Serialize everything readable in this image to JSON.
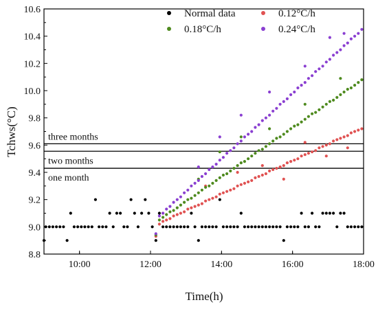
{
  "chart_data": {
    "type": "scatter",
    "xlabel": "Time(h)",
    "ylabel": "Tchws(°C)",
    "xlim": [
      9,
      18
    ],
    "ylim": [
      8.8,
      10.6
    ],
    "x_ticks": [
      {
        "value": 10,
        "label": "10:00"
      },
      {
        "value": 12,
        "label": "12:00"
      },
      {
        "value": 14,
        "label": "14:00"
      },
      {
        "value": 16,
        "label": "16:00"
      },
      {
        "value": 18,
        "label": "18:00"
      }
    ],
    "y_ticks": [
      {
        "value": 8.8,
        "label": "8.8"
      },
      {
        "value": 9.0,
        "label": "9.0"
      },
      {
        "value": 9.2,
        "label": "9.2"
      },
      {
        "value": 9.4,
        "label": "9.4"
      },
      {
        "value": 9.6,
        "label": "9.6"
      },
      {
        "value": 9.8,
        "label": "9.8"
      },
      {
        "value": 10.0,
        "label": "10.0"
      },
      {
        "value": 10.2,
        "label": "10.2"
      },
      {
        "value": 10.4,
        "label": "10.4"
      },
      {
        "value": 10.6,
        "label": "10.6"
      }
    ],
    "legend_position": "top-right",
    "grid": false,
    "reference_lines": [
      {
        "y": 9.61,
        "label": "three months"
      },
      {
        "y": 9.555,
        "label": "two months"
      },
      {
        "y": 9.43,
        "label": "one month"
      }
    ],
    "series": [
      {
        "name": "Normal data",
        "color": "#000000",
        "points": [
          [
            9.0,
            8.9
          ],
          [
            9.05,
            9.0
          ],
          [
            9.15,
            9.0
          ],
          [
            9.25,
            9.0
          ],
          [
            9.35,
            9.0
          ],
          [
            9.45,
            9.0
          ],
          [
            9.55,
            9.0
          ],
          [
            9.65,
            8.9
          ],
          [
            9.75,
            9.1
          ],
          [
            9.85,
            9.0
          ],
          [
            9.95,
            9.0
          ],
          [
            10.05,
            9.0
          ],
          [
            10.15,
            9.0
          ],
          [
            10.25,
            9.0
          ],
          [
            10.35,
            9.0
          ],
          [
            10.45,
            9.2
          ],
          [
            10.55,
            9.0
          ],
          [
            10.65,
            9.0
          ],
          [
            10.75,
            9.0
          ],
          [
            10.85,
            9.1
          ],
          [
            10.95,
            9.0
          ],
          [
            11.05,
            9.1
          ],
          [
            11.15,
            9.1
          ],
          [
            11.25,
            9.0
          ],
          [
            11.35,
            9.0
          ],
          [
            11.45,
            9.2
          ],
          [
            11.55,
            9.1
          ],
          [
            11.65,
            9.0
          ],
          [
            11.75,
            9.1
          ],
          [
            11.85,
            9.2
          ],
          [
            11.95,
            9.1
          ],
          [
            12.05,
            9.0
          ],
          [
            12.15,
            8.9
          ],
          [
            12.25,
            9.1
          ],
          [
            12.35,
            9.0
          ],
          [
            12.45,
            9.0
          ],
          [
            12.55,
            9.0
          ],
          [
            12.65,
            9.0
          ],
          [
            12.75,
            9.0
          ],
          [
            12.85,
            9.0
          ],
          [
            12.95,
            9.0
          ],
          [
            13.05,
            9.0
          ],
          [
            13.15,
            9.1
          ],
          [
            13.25,
            9.0
          ],
          [
            13.35,
            8.9
          ],
          [
            13.45,
            9.0
          ],
          [
            13.55,
            9.0
          ],
          [
            13.65,
            9.0
          ],
          [
            13.75,
            9.0
          ],
          [
            13.85,
            9.0
          ],
          [
            13.95,
            9.2
          ],
          [
            14.05,
            9.0
          ],
          [
            14.15,
            9.0
          ],
          [
            14.25,
            9.0
          ],
          [
            14.35,
            9.0
          ],
          [
            14.45,
            9.0
          ],
          [
            14.55,
            9.1
          ],
          [
            14.65,
            9.0
          ],
          [
            14.75,
            9.0
          ],
          [
            14.85,
            9.0
          ],
          [
            14.95,
            9.0
          ],
          [
            15.05,
            9.0
          ],
          [
            15.15,
            9.0
          ],
          [
            15.25,
            9.0
          ],
          [
            15.35,
            9.0
          ],
          [
            15.45,
            9.0
          ],
          [
            15.55,
            9.0
          ],
          [
            15.65,
            9.0
          ],
          [
            15.75,
            8.9
          ],
          [
            15.85,
            9.0
          ],
          [
            15.95,
            9.0
          ],
          [
            16.05,
            9.0
          ],
          [
            16.15,
            9.0
          ],
          [
            16.25,
            9.1
          ],
          [
            16.35,
            9.0
          ],
          [
            16.45,
            9.0
          ],
          [
            16.55,
            9.1
          ],
          [
            16.65,
            9.0
          ],
          [
            16.75,
            9.0
          ],
          [
            16.85,
            9.1
          ],
          [
            16.95,
            9.1
          ],
          [
            17.05,
            9.1
          ],
          [
            17.15,
            9.1
          ],
          [
            17.25,
            9.0
          ],
          [
            17.35,
            9.1
          ],
          [
            17.45,
            9.1
          ],
          [
            17.55,
            9.0
          ],
          [
            17.65,
            9.0
          ],
          [
            17.75,
            9.0
          ],
          [
            17.85,
            9.0
          ],
          [
            17.95,
            9.0
          ]
        ]
      },
      {
        "name": "0.12°C/h",
        "color": "#e05252",
        "points": [
          [
            12.15,
            8.93
          ],
          [
            12.25,
            9.02
          ],
          [
            12.35,
            9.04
          ],
          [
            12.45,
            9.05
          ],
          [
            12.55,
            9.06
          ],
          [
            12.65,
            9.08
          ],
          [
            12.75,
            9.09
          ],
          [
            12.85,
            9.1
          ],
          [
            12.95,
            9.11
          ],
          [
            13.05,
            9.13
          ],
          [
            13.15,
            9.14
          ],
          [
            13.25,
            9.15
          ],
          [
            13.35,
            9.16
          ],
          [
            13.45,
            9.17
          ],
          [
            13.55,
            9.19
          ],
          [
            13.65,
            9.2
          ],
          [
            13.75,
            9.21
          ],
          [
            13.85,
            9.22
          ],
          [
            13.95,
            9.24
          ],
          [
            14.05,
            9.25
          ],
          [
            14.15,
            9.26
          ],
          [
            14.25,
            9.27
          ],
          [
            14.35,
            9.28
          ],
          [
            14.45,
            9.3
          ],
          [
            14.55,
            9.31
          ],
          [
            14.65,
            9.32
          ],
          [
            14.75,
            9.33
          ],
          [
            14.85,
            9.34
          ],
          [
            14.95,
            9.36
          ],
          [
            15.05,
            9.37
          ],
          [
            15.15,
            9.38
          ],
          [
            15.25,
            9.39
          ],
          [
            15.35,
            9.41
          ],
          [
            15.45,
            9.42
          ],
          [
            15.55,
            9.43
          ],
          [
            15.65,
            9.44
          ],
          [
            15.75,
            9.45
          ],
          [
            15.85,
            9.47
          ],
          [
            15.95,
            9.48
          ],
          [
            16.05,
            9.49
          ],
          [
            16.15,
            9.5
          ],
          [
            16.25,
            9.52
          ],
          [
            16.35,
            9.53
          ],
          [
            16.45,
            9.54
          ],
          [
            16.55,
            9.55
          ],
          [
            16.65,
            9.56
          ],
          [
            16.75,
            9.58
          ],
          [
            16.85,
            9.59
          ],
          [
            16.95,
            9.6
          ],
          [
            17.05,
            9.61
          ],
          [
            17.15,
            9.63
          ],
          [
            17.25,
            9.64
          ],
          [
            17.35,
            9.65
          ],
          [
            17.45,
            9.66
          ],
          [
            17.55,
            9.67
          ],
          [
            17.65,
            9.69
          ],
          [
            17.75,
            9.7
          ],
          [
            17.85,
            9.71
          ],
          [
            17.95,
            9.72
          ],
          [
            12.35,
            9.1
          ],
          [
            13.55,
            9.3
          ],
          [
            14.45,
            9.4
          ],
          [
            15.15,
            9.45
          ],
          [
            15.75,
            9.35
          ],
          [
            16.35,
            9.62
          ],
          [
            16.95,
            9.52
          ],
          [
            17.55,
            9.58
          ]
        ]
      },
      {
        "name": "0.18°C/h",
        "color": "#4e8a1e",
        "points": [
          [
            12.15,
            8.94
          ],
          [
            12.25,
            9.05
          ],
          [
            12.35,
            9.07
          ],
          [
            12.45,
            9.09
          ],
          [
            12.55,
            9.11
          ],
          [
            12.65,
            9.12
          ],
          [
            12.75,
            9.14
          ],
          [
            12.85,
            9.16
          ],
          [
            12.95,
            9.18
          ],
          [
            13.05,
            9.2
          ],
          [
            13.15,
            9.21
          ],
          [
            13.25,
            9.23
          ],
          [
            13.35,
            9.25
          ],
          [
            13.45,
            9.27
          ],
          [
            13.55,
            9.29
          ],
          [
            13.65,
            9.3
          ],
          [
            13.75,
            9.32
          ],
          [
            13.85,
            9.34
          ],
          [
            13.95,
            9.36
          ],
          [
            14.05,
            9.38
          ],
          [
            14.15,
            9.39
          ],
          [
            14.25,
            9.41
          ],
          [
            14.35,
            9.43
          ],
          [
            14.45,
            9.45
          ],
          [
            14.55,
            9.47
          ],
          [
            14.65,
            9.48
          ],
          [
            14.75,
            9.5
          ],
          [
            14.85,
            9.52
          ],
          [
            14.95,
            9.54
          ],
          [
            15.05,
            9.56
          ],
          [
            15.15,
            9.57
          ],
          [
            15.25,
            9.59
          ],
          [
            15.35,
            9.61
          ],
          [
            15.45,
            9.63
          ],
          [
            15.55,
            9.65
          ],
          [
            15.65,
            9.66
          ],
          [
            15.75,
            9.68
          ],
          [
            15.85,
            9.7
          ],
          [
            15.95,
            9.72
          ],
          [
            16.05,
            9.74
          ],
          [
            16.15,
            9.75
          ],
          [
            16.25,
            9.77
          ],
          [
            16.35,
            9.79
          ],
          [
            16.45,
            9.81
          ],
          [
            16.55,
            9.83
          ],
          [
            16.65,
            9.84
          ],
          [
            16.75,
            9.86
          ],
          [
            16.85,
            9.88
          ],
          [
            16.95,
            9.9
          ],
          [
            17.05,
            9.92
          ],
          [
            17.15,
            9.93
          ],
          [
            17.25,
            9.95
          ],
          [
            17.35,
            9.97
          ],
          [
            17.45,
            9.99
          ],
          [
            17.55,
            10.01
          ],
          [
            17.65,
            10.02
          ],
          [
            17.75,
            10.04
          ],
          [
            17.85,
            10.06
          ],
          [
            17.95,
            10.08
          ],
          [
            13.35,
            9.35
          ],
          [
            13.95,
            9.55
          ],
          [
            14.55,
            9.66
          ],
          [
            15.35,
            9.72
          ],
          [
            16.35,
            9.9
          ],
          [
            17.35,
            10.09
          ]
        ]
      },
      {
        "name": "0.24°C/h",
        "color": "#8a3fd1",
        "points": [
          [
            12.15,
            8.95
          ],
          [
            12.25,
            9.08
          ],
          [
            12.35,
            9.1
          ],
          [
            12.45,
            9.13
          ],
          [
            12.55,
            9.15
          ],
          [
            12.65,
            9.18
          ],
          [
            12.75,
            9.2
          ],
          [
            12.85,
            9.22
          ],
          [
            12.95,
            9.25
          ],
          [
            13.05,
            9.27
          ],
          [
            13.15,
            9.3
          ],
          [
            13.25,
            9.32
          ],
          [
            13.35,
            9.34
          ],
          [
            13.45,
            9.37
          ],
          [
            13.55,
            9.39
          ],
          [
            13.65,
            9.42
          ],
          [
            13.75,
            9.44
          ],
          [
            13.85,
            9.46
          ],
          [
            13.95,
            9.49
          ],
          [
            14.05,
            9.51
          ],
          [
            14.15,
            9.54
          ],
          [
            14.25,
            9.56
          ],
          [
            14.35,
            9.58
          ],
          [
            14.45,
            9.61
          ],
          [
            14.55,
            9.63
          ],
          [
            14.65,
            9.66
          ],
          [
            14.75,
            9.68
          ],
          [
            14.85,
            9.7
          ],
          [
            14.95,
            9.73
          ],
          [
            15.05,
            9.75
          ],
          [
            15.15,
            9.78
          ],
          [
            15.25,
            9.8
          ],
          [
            15.35,
            9.82
          ],
          [
            15.45,
            9.85
          ],
          [
            15.55,
            9.87
          ],
          [
            15.65,
            9.9
          ],
          [
            15.75,
            9.92
          ],
          [
            15.85,
            9.94
          ],
          [
            15.95,
            9.97
          ],
          [
            16.05,
            9.99
          ],
          [
            16.15,
            10.02
          ],
          [
            16.25,
            10.04
          ],
          [
            16.35,
            10.06
          ],
          [
            16.45,
            10.09
          ],
          [
            16.55,
            10.11
          ],
          [
            16.65,
            10.14
          ],
          [
            16.75,
            10.16
          ],
          [
            16.85,
            10.18
          ],
          [
            16.95,
            10.21
          ],
          [
            17.05,
            10.23
          ],
          [
            17.15,
            10.26
          ],
          [
            17.25,
            10.28
          ],
          [
            17.35,
            10.3
          ],
          [
            17.45,
            10.33
          ],
          [
            17.55,
            10.35
          ],
          [
            17.65,
            10.38
          ],
          [
            17.75,
            10.4
          ],
          [
            17.85,
            10.42
          ],
          [
            17.95,
            10.45
          ],
          [
            13.35,
            9.44
          ],
          [
            13.95,
            9.66
          ],
          [
            14.55,
            9.82
          ],
          [
            15.35,
            9.99
          ],
          [
            16.35,
            10.18
          ],
          [
            17.05,
            10.39
          ],
          [
            17.45,
            10.42
          ]
        ]
      }
    ]
  }
}
